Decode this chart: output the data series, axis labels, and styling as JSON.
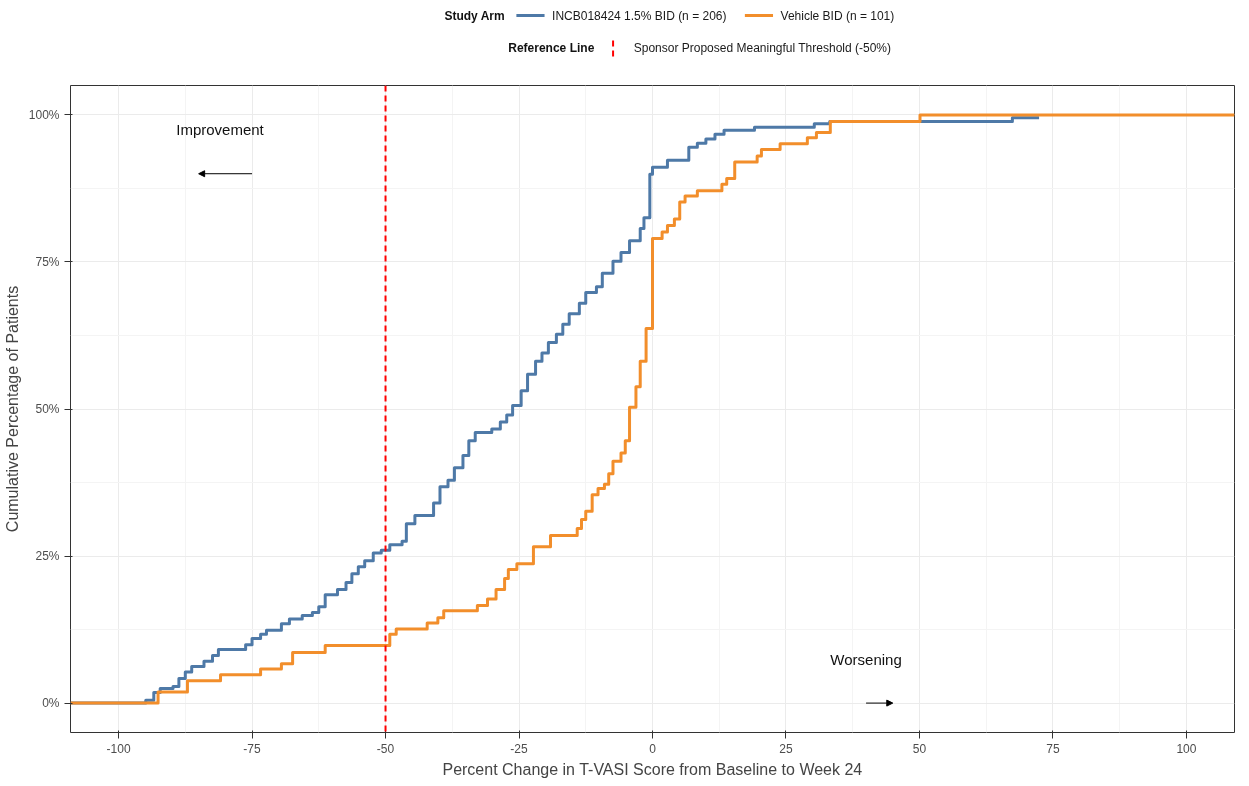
{
  "chart_data": {
    "type": "step",
    "xlabel": "Percent Change in T-VASI Score from Baseline to Week 24",
    "ylabel": "Cumulative Percentage of Patients",
    "legend_title": "Study Arm",
    "legend": "top",
    "grid": true,
    "xlim": [
      -109,
      109
    ],
    "ylim": [
      -5,
      105
    ],
    "xticks": [
      -100,
      -75,
      -50,
      -25,
      0,
      25,
      50,
      75,
      100
    ],
    "yticks": [
      {
        "value": 0,
        "label": "0%"
      },
      {
        "value": 25,
        "label": "25%"
      },
      {
        "value": 50,
        "label": "50%"
      },
      {
        "value": 75,
        "label": "75%"
      },
      {
        "value": 100,
        "label": "100%"
      }
    ],
    "series": [
      {
        "name": "INCB018424 1.5% BID (n = 206)",
        "color": "#4e79a7",
        "x": [
          -109,
          -94.9,
          -93.4,
          -92.2,
          -89.8,
          -88.7,
          -87.5,
          -86.3,
          -84,
          -82.4,
          -81.3,
          -76.2,
          -75,
          -73.4,
          -72.3,
          -69.5,
          -68,
          -65.6,
          -63.7,
          -62.5,
          -61.3,
          -59,
          -57.4,
          -56.3,
          -55.1,
          -53.9,
          -52.3,
          -50.8,
          -49.2,
          -46.9,
          -46.1,
          -44.5,
          -41,
          -39.8,
          -38.3,
          -37.1,
          -35.5,
          -34.4,
          -33.2,
          -30.1,
          -28.5,
          -27.3,
          -26.2,
          -24.6,
          -23.4,
          -21.9,
          -20.7,
          -19.5,
          -18,
          -16.8,
          -15.6,
          -13.7,
          -12.5,
          -10.5,
          -9.4,
          -7.4,
          -5.9,
          -4.3,
          -2.3,
          -1.6,
          -0.5,
          0,
          1,
          2.8,
          6.8,
          8.4,
          10,
          11.7,
          13.4,
          19.1,
          30.3,
          33.2,
          67.4,
          72.4
        ],
        "values": [
          0,
          0.5,
          1.8,
          2.5,
          2.8,
          4.2,
          5.3,
          6.2,
          7.1,
          8.1,
          9.1,
          9.9,
          11,
          11.7,
          12.4,
          13.5,
          14.3,
          14.9,
          15.4,
          16.4,
          18.4,
          19.3,
          20.5,
          22,
          23.2,
          24.2,
          25.5,
          26,
          26.9,
          27.5,
          30.5,
          31.9,
          34,
          36.8,
          37.9,
          40,
          42.1,
          44.6,
          46,
          46.6,
          47.8,
          49,
          50.6,
          53.1,
          55.9,
          58.1,
          59.5,
          61.3,
          62.7,
          64.4,
          66.2,
          68,
          69.8,
          70.8,
          73.1,
          75.1,
          76.6,
          78.6,
          80.7,
          82.5,
          89.9,
          91.1,
          91.1,
          92.3,
          94.5,
          95.2,
          95.9,
          96.7,
          97.4,
          97.9,
          98.5,
          98.9,
          99.5,
          99.5
        ]
      },
      {
        "name": "Vehicle BID (n = 101)",
        "color": "#f28e2b",
        "x": [
          -109,
          -92.6,
          -87.1,
          -80.9,
          -73.4,
          -69.5,
          -67.4,
          -61.3,
          -49.2,
          -48,
          -42.2,
          -40.2,
          -39.1,
          -32.8,
          -30.9,
          -29.3,
          -27.7,
          -27,
          -25.4,
          -22.3,
          -19.1,
          -14.1,
          -13.3,
          -12.5,
          -11.3,
          -10.2,
          -9,
          -8.2,
          -7.4,
          -5.9,
          -5.1,
          -4.3,
          -3.1,
          -2.3,
          -1.2,
          0,
          1.8,
          2.8,
          4.1,
          5.1,
          6.1,
          8.4,
          13,
          13.9,
          15.4,
          19.6,
          20.4,
          23.9,
          29,
          30.7,
          33.3,
          50.1,
          109
        ],
        "values": [
          0,
          1.9,
          3.8,
          4.8,
          5.8,
          6.7,
          8.6,
          9.8,
          11.7,
          12.6,
          13.6,
          14.5,
          15.7,
          16.6,
          17.7,
          19.3,
          21.2,
          22.7,
          23.7,
          26.6,
          28.5,
          29.7,
          31.2,
          32.6,
          35.4,
          36.5,
          37.2,
          39,
          41.1,
          42.5,
          44.6,
          50.3,
          53.8,
          58.1,
          63.7,
          79,
          80.1,
          81.2,
          82.3,
          85.2,
          86.2,
          87.1,
          88.2,
          89.2,
          92,
          93,
          94.1,
          95.1,
          96.1,
          97,
          98.9,
          100,
          100
        ]
      }
    ],
    "ref_lines": [
      {
        "axis": "x",
        "value": -50,
        "label": "Sponsor Proposed Meaningful Threshold (-50%)",
        "color": "#ff0000",
        "line_style": "dashed"
      }
    ],
    "annotations": [
      "Reference Line",
      "Improvement",
      "Worsening"
    ]
  }
}
